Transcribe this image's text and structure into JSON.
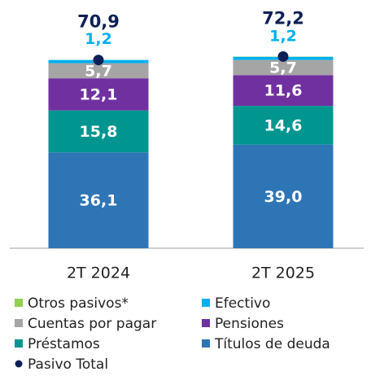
{
  "chart_data": {
    "type": "bar",
    "stacked": true,
    "categories": [
      "2T 2024",
      "2T 2025"
    ],
    "ylim": [
      0,
      80
    ],
    "series": [
      {
        "name": "Otros pasivos*",
        "color": "#92d050",
        "values": [
          0,
          0.1
        ]
      },
      {
        "name": "Efectivo",
        "color": "#00b0f0",
        "values": [
          1.2,
          1.2
        ],
        "value_labels": [
          "1,2",
          "1,2"
        ],
        "label_color": "#00b0f0",
        "label_position": "above"
      },
      {
        "name": "Cuentas por pagar",
        "color": "#a5a5a5",
        "values": [
          5.7,
          5.7
        ],
        "value_labels": [
          "5,7",
          "5,7"
        ],
        "label_color": "#ffffff",
        "label_position": "center"
      },
      {
        "name": "Pensiones",
        "color": "#7030a0",
        "values": [
          12.1,
          11.6
        ],
        "value_labels": [
          "12,1",
          "11,6"
        ],
        "label_color": "#ffffff",
        "label_position": "center"
      },
      {
        "name": "Préstamos",
        "color": "#00958f",
        "values": [
          15.8,
          14.6
        ],
        "value_labels": [
          "15,8",
          "14,6"
        ],
        "label_color": "#ffffff",
        "label_position": "center"
      },
      {
        "name": "Títulos de deuda",
        "color": "#2e75b6",
        "values": [
          36.1,
          39.0
        ],
        "value_labels": [
          "36,1",
          "39,0"
        ],
        "label_color": "#ffffff",
        "label_position": "center"
      }
    ],
    "total": {
      "name": "Pasivo Total",
      "color": "#0d1f56",
      "values": [
        70.9,
        72.2
      ],
      "value_labels": [
        "70,9",
        "72,2"
      ]
    }
  }
}
